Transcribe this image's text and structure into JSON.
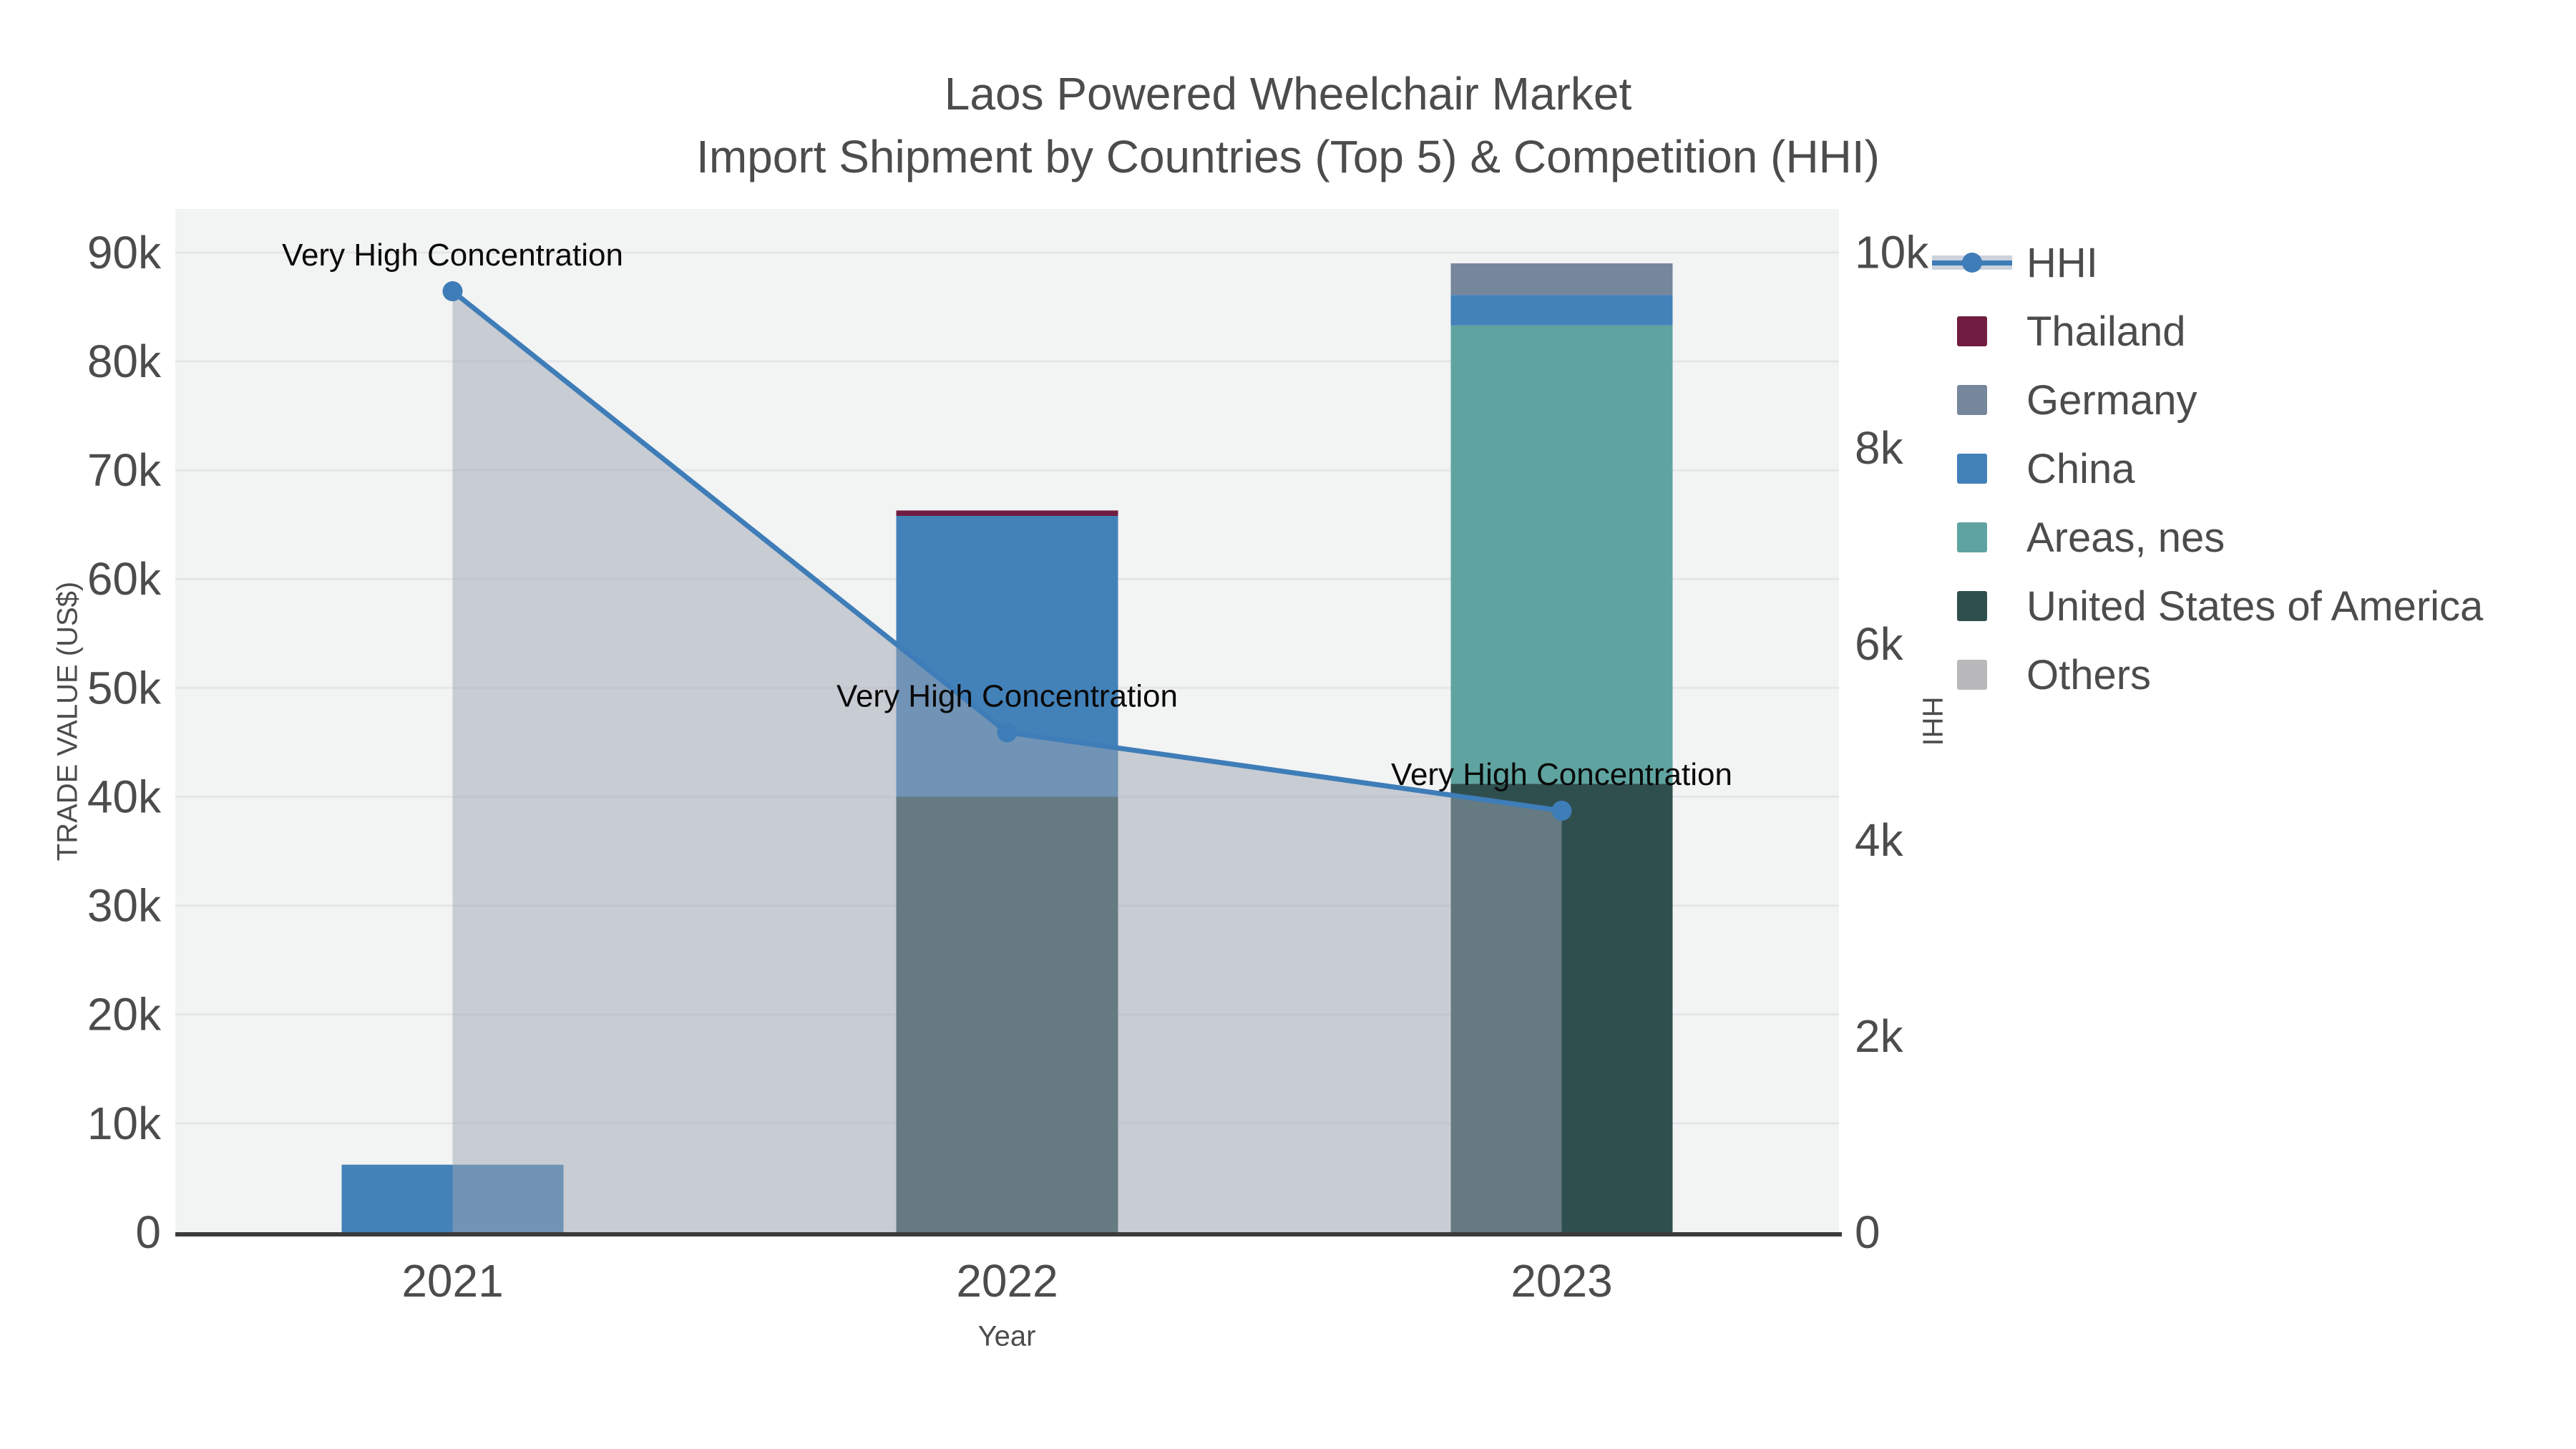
{
  "title": {
    "line1": "Laos Powered Wheelchair Market",
    "line2": "Import Shipment by Countries (Top 5) & Competition (HHI)"
  },
  "axes": {
    "x": {
      "title": "Year",
      "categories": [
        "2021",
        "2022",
        "2023"
      ]
    },
    "y_left": {
      "title": "TRADE VALUE (US$)",
      "tick_labels": [
        "0",
        "10k",
        "20k",
        "30k",
        "40k",
        "50k",
        "60k",
        "70k",
        "80k",
        "90k"
      ],
      "tick_step": 10000,
      "max": 94000
    },
    "y_right": {
      "title": "HHI",
      "tick_labels": [
        "0",
        "2k",
        "4k",
        "6k",
        "8k",
        "10k"
      ],
      "tick_step": 2000,
      "max": 10440
    }
  },
  "legend": {
    "items": [
      {
        "label": "HHI",
        "type": "line",
        "color": "#3e7db8",
        "band": "#ccd3dc"
      },
      {
        "label": "Thailand",
        "type": "swatch",
        "color": "#701d41"
      },
      {
        "label": "Germany",
        "type": "swatch",
        "color": "#76869b"
      },
      {
        "label": "China",
        "type": "swatch",
        "color": "#4381b9"
      },
      {
        "label": "Areas, nes",
        "type": "swatch",
        "color": "#5fa4a0"
      },
      {
        "label": "United States of America",
        "type": "swatch",
        "color": "#2f4f4f"
      },
      {
        "label": "Others",
        "type": "swatch",
        "color": "#b9b8bb"
      }
    ]
  },
  "chart_data": {
    "type": "bar+line",
    "title": "Laos Powered Wheelchair Market Import Shipment by Countries (Top 5) & Competition (HHI)",
    "xlabel": "Year",
    "ylabel_left": "TRADE VALUE (US$)",
    "ylabel_right": "HHI",
    "categories": [
      "2021",
      "2022",
      "2023"
    ],
    "bar_series_bottom_to_top": [
      {
        "name": "Others",
        "color": "#b9b8bb",
        "values": [
          0,
          0,
          0
        ]
      },
      {
        "name": "United States of America",
        "color": "#2f4f4f",
        "values": [
          0,
          40000,
          41200
        ]
      },
      {
        "name": "Areas, nes",
        "color": "#5fa4a0",
        "values": [
          0,
          0,
          42100
        ]
      },
      {
        "name": "China",
        "color": "#4381b9",
        "values": [
          6200,
          25800,
          2800
        ]
      },
      {
        "name": "Germany",
        "color": "#76869b",
        "values": [
          0,
          0,
          2900
        ]
      },
      {
        "name": "Thailand",
        "color": "#701d41",
        "values": [
          0,
          500,
          0
        ]
      }
    ],
    "line_series": {
      "name": "HHI",
      "axis": "right",
      "color": "#3e7db8",
      "fill": "rgba(158,166,180,0.5)",
      "values": [
        9600,
        5100,
        4300
      ]
    },
    "annotations": [
      {
        "category": "2021",
        "text": "Very High Concentration"
      },
      {
        "category": "2022",
        "text": "Very High Concentration"
      },
      {
        "category": "2023",
        "text": "Very High Concentration"
      }
    ],
    "ylim_left": [
      0,
      94000
    ],
    "ylim_right": [
      0,
      10440
    ],
    "grid": true,
    "plot_bg": "#f2f3f3",
    "grid_color": "#e4e6e8",
    "axis_line_color": "#3b3b3b",
    "legend_position": "right"
  }
}
